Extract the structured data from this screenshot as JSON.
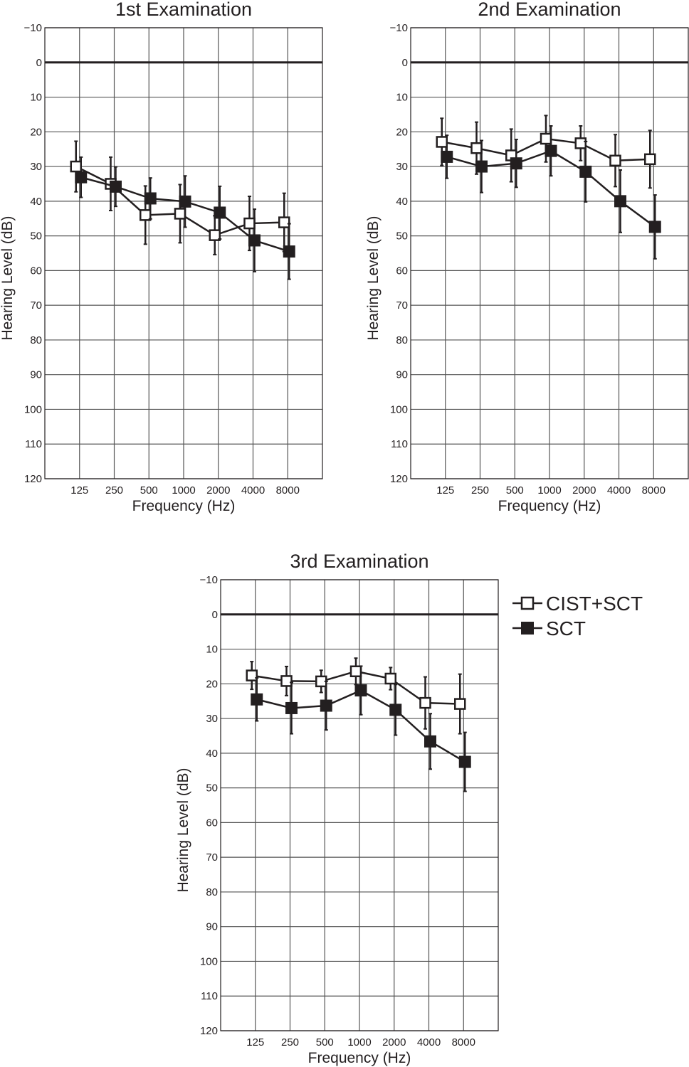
{
  "colors": {
    "ink": "#231f20",
    "grid": "#555555",
    "open_fill": "#ffffff",
    "filled_fill": "#231f20"
  },
  "legend": {
    "items": [
      {
        "label": "CIST+SCT",
        "marker": "open-square"
      },
      {
        "label": "SCT",
        "marker": "filled-square"
      }
    ],
    "placement": "right of 3rd chart"
  },
  "chart_data": [
    {
      "type": "line",
      "title": "1st Examination",
      "xlabel": "Frequency (Hz)",
      "ylabel": "Hearing Level (dB)",
      "categories": [
        "125",
        "250",
        "500",
        "1000",
        "2000",
        "4000",
        "8000"
      ],
      "yticks": [
        "−10",
        "0",
        "10",
        "20",
        "30",
        "40",
        "50",
        "60",
        "70",
        "80",
        "90",
        "100",
        "110",
        "120"
      ],
      "ylim": [
        -10,
        120
      ],
      "y_inverted": true,
      "grid": true,
      "reference_line": 0,
      "series": [
        {
          "name": "CIST+SCT",
          "values": [
            30,
            35,
            44,
            43.6,
            49.8,
            46.4,
            46.1
          ],
          "error": [
            7.3,
            7.7,
            8.4,
            8.4,
            5.6,
            7.8,
            8.4
          ]
        },
        {
          "name": "SCT",
          "values": [
            33.1,
            35.8,
            39.2,
            40.1,
            43.3,
            51.3,
            54.5
          ],
          "error": [
            5.8,
            5.7,
            5.9,
            7.4,
            7.6,
            9,
            8
          ]
        }
      ]
    },
    {
      "type": "line",
      "title": "2nd Examination",
      "xlabel": "Frequency (Hz)",
      "ylabel": "Hearing Level (dB)",
      "categories": [
        "125",
        "250",
        "500",
        "1000",
        "2000",
        "4000",
        "8000"
      ],
      "yticks": [
        "−10",
        "0",
        "10",
        "20",
        "30",
        "40",
        "50",
        "60",
        "70",
        "80",
        "90",
        "100",
        "110",
        "120"
      ],
      "ylim": [
        -10,
        120
      ],
      "y_inverted": true,
      "grid": true,
      "reference_line": 0,
      "series": [
        {
          "name": "CIST+SCT",
          "values": [
            22.9,
            24.7,
            26.8,
            22,
            23.3,
            28.3,
            27.9
          ],
          "error": [
            6.8,
            7.5,
            7.6,
            6.7,
            5,
            7.5,
            8.3
          ]
        },
        {
          "name": "SCT",
          "values": [
            27.2,
            30,
            29.1,
            25.5,
            31.5,
            40,
            47.4
          ],
          "error": [
            6.2,
            7.5,
            6.9,
            7.2,
            8.7,
            9,
            9.2
          ]
        }
      ]
    },
    {
      "type": "line",
      "title": "3rd Examination",
      "xlabel": "Frequency (Hz)",
      "ylabel": "Hearing Level (dB)",
      "categories": [
        "125",
        "250",
        "500",
        "1000",
        "2000",
        "4000",
        "8000"
      ],
      "yticks": [
        "−10",
        "0",
        "10",
        "20",
        "30",
        "40",
        "50",
        "60",
        "70",
        "80",
        "90",
        "100",
        "110",
        "120"
      ],
      "ylim": [
        -10,
        120
      ],
      "y_inverted": true,
      "grid": true,
      "reference_line": 0,
      "series": [
        {
          "name": "CIST+SCT",
          "values": [
            17.6,
            19.2,
            19.3,
            16.4,
            18.5,
            25.5,
            25.8
          ],
          "error": [
            4,
            4.2,
            3.2,
            3.8,
            3.2,
            7.5,
            8.6
          ]
        },
        {
          "name": "SCT",
          "values": [
            24.5,
            27,
            26.3,
            21.9,
            27.5,
            36.6,
            42.5
          ],
          "error": [
            6.2,
            7.4,
            7,
            7,
            7.3,
            8,
            8.5
          ]
        }
      ]
    }
  ]
}
